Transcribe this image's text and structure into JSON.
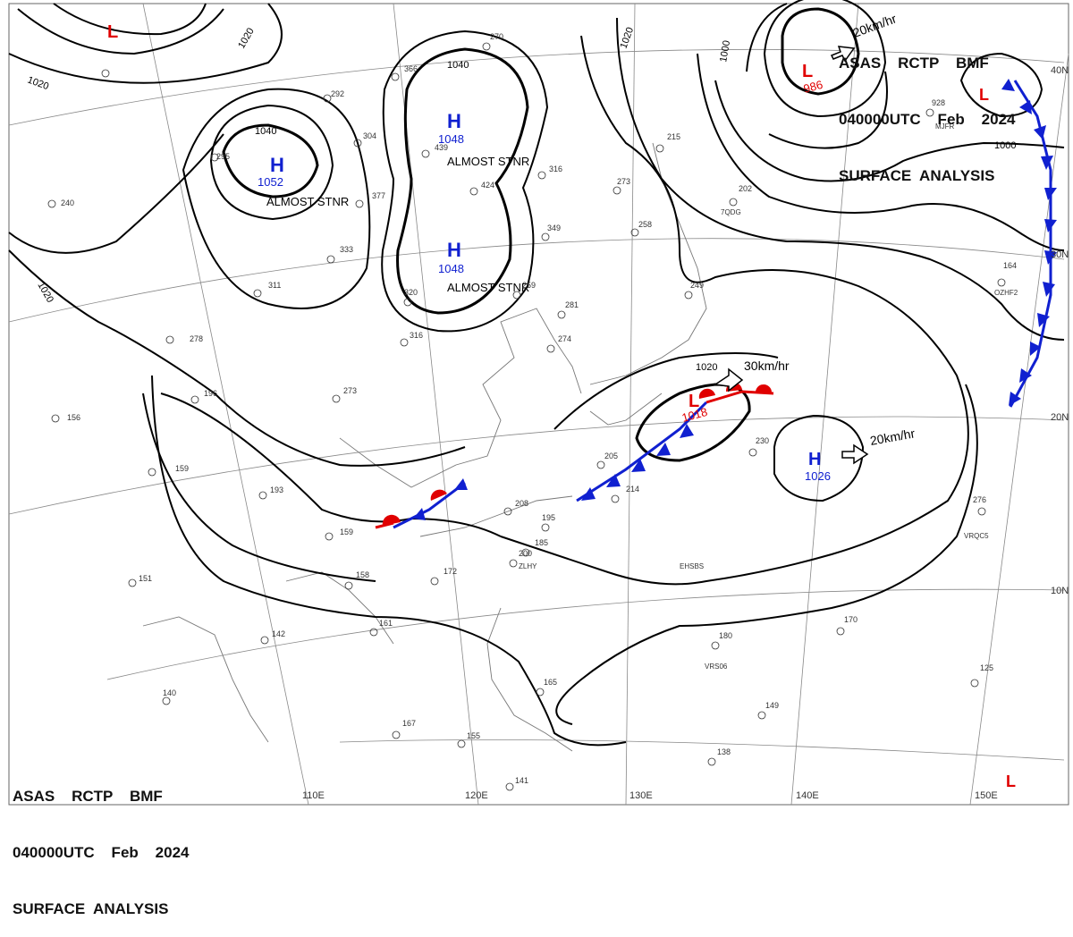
{
  "header": {
    "line1": "ASAS    RCTP    BMF",
    "line2": "040000UTC    Feb    2024",
    "line3": "SURFACE  ANALYSIS"
  },
  "pressure_systems": [
    {
      "type": "L",
      "value": "",
      "color": "#e00000"
    },
    {
      "type": "H",
      "value": "1052",
      "color": "#1020d0",
      "note": "ALMOST STNR"
    },
    {
      "type": "H",
      "value": "1048",
      "color": "#1020d0",
      "note": "ALMOST STNR"
    },
    {
      "type": "H",
      "value": "1048",
      "color": "#1020d0",
      "note": "ALMOST STNR"
    },
    {
      "type": "L",
      "value": "986",
      "color": "#e00000",
      "note": "20km/hr"
    },
    {
      "type": "L",
      "value": "",
      "color": "#e00000"
    },
    {
      "type": "L",
      "value": "1018",
      "color": "#e00000",
      "note": "30km/hr"
    },
    {
      "type": "H",
      "value": "1026",
      "color": "#1020d0",
      "note": "20km/hr"
    },
    {
      "type": "L",
      "value": "",
      "color": "#e00000"
    }
  ],
  "isobar_labels": [
    "1020",
    "1020",
    "1020",
    "1040",
    "1040",
    "1020",
    "1000",
    "1000",
    "1020"
  ],
  "lat_labels": [
    "40N",
    "30N",
    "20N",
    "10N"
  ],
  "lon_labels": [
    "110E",
    "120E",
    "130E",
    "140E",
    "150E"
  ],
  "station_obs": [
    "156",
    "159",
    "151",
    "142",
    "140",
    "167",
    "155",
    "141",
    "278",
    "196",
    "273",
    "193",
    "159",
    "158",
    "172",
    "161",
    "208",
    "185",
    "195",
    "200",
    "214",
    "205",
    "230",
    "180",
    "170",
    "125",
    "149",
    "138",
    "165",
    "276",
    "164",
    "258",
    "273",
    "349",
    "316",
    "424",
    "304",
    "377",
    "333",
    "320",
    "316",
    "292",
    "366",
    "270",
    "439",
    "295",
    "240",
    "215",
    "202",
    "928",
    "311",
    "281",
    "274",
    "259",
    "249"
  ],
  "station_ids": [
    "EHSBS",
    "VRS06",
    "VRQC5",
    "ZLHY",
    "MJFR",
    "7QDG",
    "OZHF2"
  ],
  "colors": {
    "high": "#1020d0",
    "low": "#e00000",
    "cold_front": "#1020d0",
    "warm_front": "#e00000",
    "isobar": "#000000",
    "grid": "#888888",
    "coast": "#777777"
  }
}
